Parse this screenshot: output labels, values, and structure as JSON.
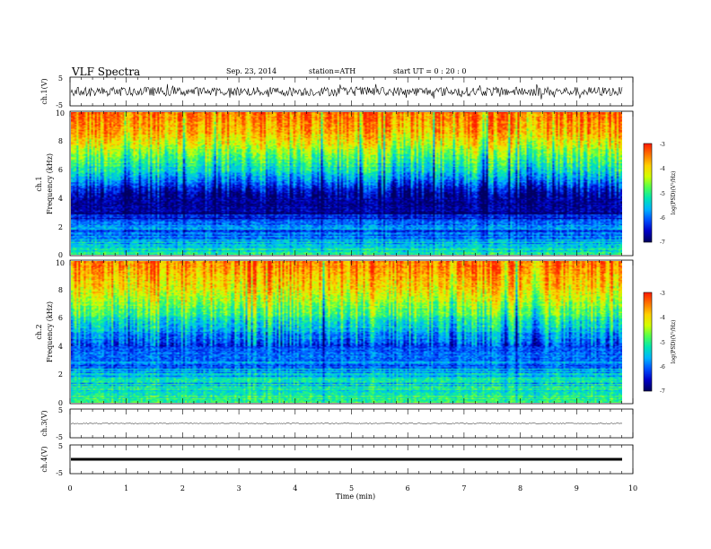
{
  "header": {
    "title": "VLF  Spectra",
    "date": "Sep. 23, 2014",
    "station": "station=ATH",
    "start": "start  UT =   0 : 20 : 0"
  },
  "chart_data": [
    {
      "type": "line",
      "name": "ch1-waveform",
      "ylabel": "ch.1(V)",
      "ylim": [
        -5,
        5
      ],
      "yticks": [
        "5",
        "-5"
      ],
      "xlim": [
        0,
        10
      ],
      "trace": {
        "center": 0,
        "amplitude": 1.6,
        "color": "#000000"
      }
    },
    {
      "type": "heatmap",
      "name": "ch1-spectrogram",
      "ylabel": "ch.1",
      "ylabel2": "Frequency  (kHz)",
      "ylim": [
        0,
        10
      ],
      "yticks": [
        "0",
        "2",
        "4",
        "6",
        "8",
        "10"
      ],
      "xlim": [
        0,
        9.8
      ],
      "colorbar": {
        "label": "log(PSD)(V²/Hz)",
        "range": [
          -7,
          -3
        ],
        "ticks": [
          "-3",
          "-4",
          "-5",
          "-6",
          "-7"
        ]
      },
      "profile": [
        {
          "f": 0.0,
          "psd": -4.9
        },
        {
          "f": 1.0,
          "psd": -5.7
        },
        {
          "f": 2.0,
          "psd": -6.0
        },
        {
          "f": 2.5,
          "psd": -6.5
        },
        {
          "f": 3.5,
          "psd": -6.8
        },
        {
          "f": 4.5,
          "psd": -6.6
        },
        {
          "f": 5.5,
          "psd": -5.6
        },
        {
          "f": 6.5,
          "psd": -5.0
        },
        {
          "f": 7.5,
          "psd": -4.4
        },
        {
          "f": 8.5,
          "psd": -3.8
        },
        {
          "f": 10.0,
          "psd": -3.4
        }
      ]
    },
    {
      "type": "heatmap",
      "name": "ch2-spectrogram",
      "ylabel": "ch.2",
      "ylabel2": "Frequency  (kHz)",
      "ylim": [
        0,
        10
      ],
      "yticks": [
        "0",
        "2",
        "4",
        "6",
        "8",
        "10"
      ],
      "xlim": [
        0,
        9.8
      ],
      "colorbar": {
        "label": "log(PSD)(V²/Hz)",
        "range": [
          -7,
          -3
        ],
        "ticks": [
          "-3",
          "-4",
          "-5",
          "-6",
          "-7"
        ]
      },
      "profile": [
        {
          "f": 0.0,
          "psd": -4.8
        },
        {
          "f": 1.0,
          "psd": -5.3
        },
        {
          "f": 2.0,
          "psd": -5.6
        },
        {
          "f": 3.0,
          "psd": -5.9
        },
        {
          "f": 4.0,
          "psd": -6.1
        },
        {
          "f": 5.0,
          "psd": -5.6
        },
        {
          "f": 6.0,
          "psd": -5.0
        },
        {
          "f": 7.0,
          "psd": -4.5
        },
        {
          "f": 8.0,
          "psd": -4.0
        },
        {
          "f": 9.0,
          "psd": -3.7
        },
        {
          "f": 10.0,
          "psd": -3.4
        }
      ]
    },
    {
      "type": "line",
      "name": "ch3-waveform",
      "ylabel": "ch.3(V)",
      "ylim": [
        -5,
        5
      ],
      "yticks": [
        "5",
        "-5"
      ],
      "xlim": [
        0,
        10
      ],
      "trace": {
        "center": 0,
        "amplitude": 0.15,
        "color": "#000000"
      }
    },
    {
      "type": "line",
      "name": "ch4-waveform",
      "ylabel": "ch.4(V)",
      "ylim": [
        -5,
        5
      ],
      "yticks": [
        "5",
        "-5"
      ],
      "xlim": [
        0,
        10
      ],
      "trace": {
        "center": 0,
        "amplitude": 0.2,
        "color": "#000000"
      }
    }
  ],
  "xaxis": {
    "label": "Time  (min)",
    "ticks": [
      "0",
      "1",
      "2",
      "3",
      "4",
      "5",
      "6",
      "7",
      "8",
      "9",
      "10"
    ]
  },
  "colormap": [
    "#000060",
    "#0000c8",
    "#0050ff",
    "#00b4ff",
    "#00e6b4",
    "#50ff50",
    "#d2ff00",
    "#ffd200",
    "#ff7800",
    "#ff1e00",
    "#ffffff"
  ]
}
